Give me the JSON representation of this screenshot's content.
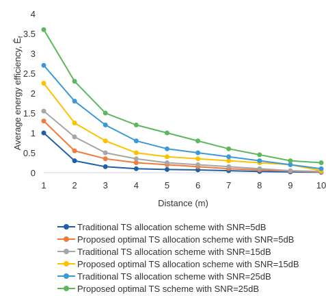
{
  "chart_data": {
    "type": "line",
    "xlabel": "Distance (m)",
    "ylabel": "Average energy efficiency, Ē",
    "ylabel_subscript": "f",
    "x": [
      1,
      2,
      3,
      4,
      5,
      6,
      7,
      8,
      9,
      10
    ],
    "xlim": [
      1,
      10
    ],
    "ylim": [
      0,
      4
    ],
    "yticks": [
      "0",
      "0.5",
      "1",
      "1.5",
      "2",
      "2.5",
      "3",
      "3.5",
      "4"
    ],
    "xticks": [
      "1",
      "2",
      "3",
      "4",
      "5",
      "6",
      "7",
      "8",
      "9",
      "10"
    ],
    "grid": false,
    "legend_position": "bottom",
    "series": [
      {
        "name": "Traditional TS allocation scheme with SNR=5dB",
        "color": "#1f5fa8",
        "values": [
          1.0,
          0.3,
          0.15,
          0.1,
          0.08,
          0.07,
          0.05,
          0.03,
          0.02,
          0.01
        ]
      },
      {
        "name": "Proposed optimal TS allocation scheme with SNR=5dB",
        "color": "#f07b3a",
        "values": [
          1.3,
          0.55,
          0.35,
          0.25,
          0.2,
          0.15,
          0.1,
          0.07,
          0.04,
          0.02
        ]
      },
      {
        "name": "Traditional TS allocation scheme with SNR=15dB",
        "color": "#a6a6a6",
        "values": [
          1.55,
          0.9,
          0.5,
          0.35,
          0.25,
          0.2,
          0.15,
          0.1,
          0.05,
          0.03
        ]
      },
      {
        "name": "Proposed optimal TS allocation scheme with SNR=15dB",
        "color": "#ffc000",
        "values": [
          2.25,
          1.25,
          0.8,
          0.5,
          0.4,
          0.35,
          0.3,
          0.25,
          0.2,
          0.05
        ]
      },
      {
        "name": "Traditional TS allocation scheme with SNR=25dB",
        "color": "#3a9ad9",
        "values": [
          2.7,
          1.8,
          1.2,
          0.8,
          0.6,
          0.5,
          0.4,
          0.3,
          0.2,
          0.1
        ]
      },
      {
        "name": "Proposed optimal TS scheme with SNR=25dB",
        "color": "#5cb85c",
        "values": [
          3.6,
          2.3,
          1.5,
          1.2,
          1.0,
          0.8,
          0.6,
          0.45,
          0.3,
          0.25
        ]
      }
    ]
  }
}
